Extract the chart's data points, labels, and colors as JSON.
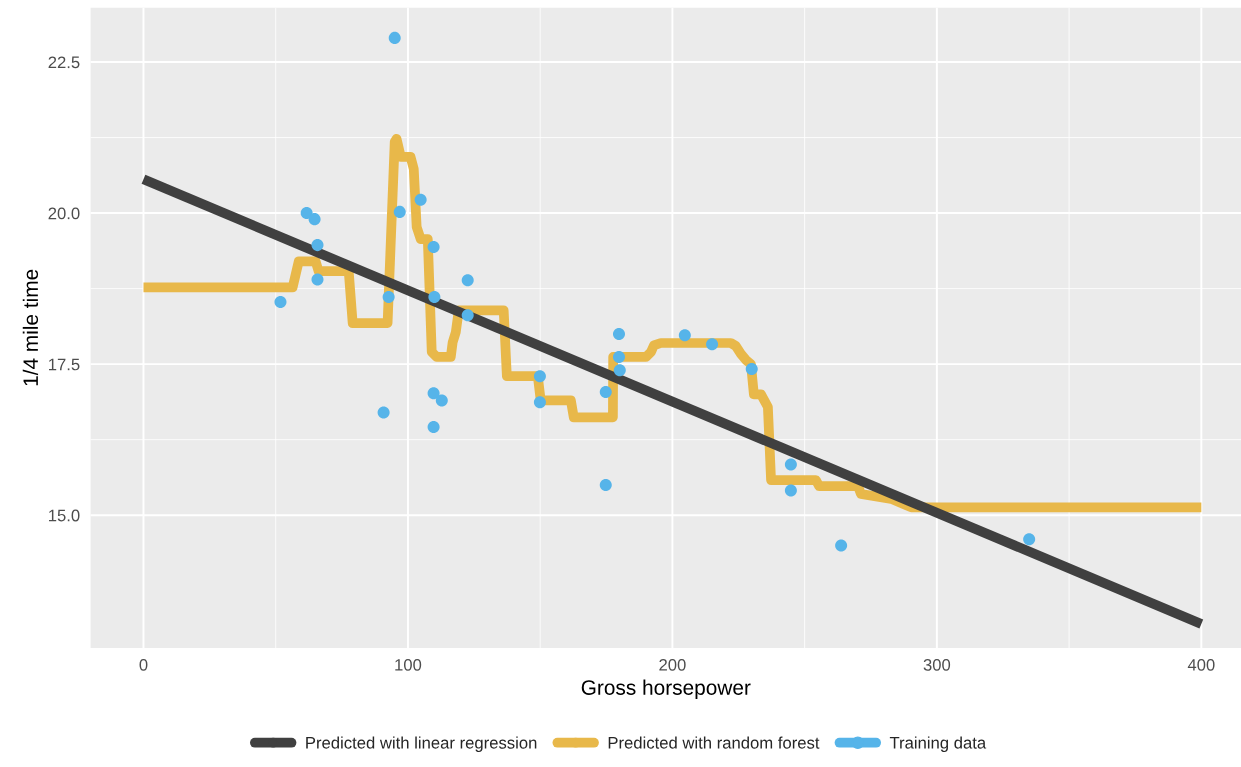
{
  "chart_data": {
    "type": "line",
    "xlabel": "Gross horsepower",
    "ylabel": "1/4 mile time",
    "xlim": [
      -20,
      415
    ],
    "ylim": [
      12.8,
      23.4
    ],
    "xticks": [
      0,
      100,
      200,
      300,
      400
    ],
    "yticks": [
      {
        "value": 15,
        "label": "15.0"
      },
      {
        "value": 17.5,
        "label": "17.5"
      },
      {
        "value": 20,
        "label": "20.0"
      },
      {
        "value": 22.5,
        "label": "22.5"
      }
    ],
    "grid": true,
    "legend": "bottom",
    "series": [
      {
        "name": "Predicted with linear regression",
        "color": "#404040",
        "x": [
          0,
          400
        ],
        "values": [
          20.56,
          13.2
        ]
      },
      {
        "name": "Predicted with random forest",
        "color": "#e8b84a",
        "x": [
          0,
          56.4,
          58.7,
          65.1,
          66.2,
          77.6,
          79.1,
          92.3,
          95.0,
          95.7,
          97.3,
          101.0,
          102.2,
          103.3,
          104.8,
          107.5,
          109.0,
          110.9,
          116.2,
          116.9,
          118.1,
          119.2,
          136.2,
          137.4,
          149.1,
          150.2,
          161.6,
          162.7,
          177.5,
          177.6,
          190.0,
          191.9,
          193.0,
          195.6,
          222.1,
          224.0,
          225.9,
          227.8,
          229.7,
          230.8,
          233.5,
          236.1,
          237.3,
          254.3,
          255.5,
          270.2,
          271.3,
          282.7,
          290.3,
          400
        ],
        "values": [
          18.77,
          18.77,
          19.2,
          19.2,
          19.04,
          19.04,
          18.18,
          18.18,
          21.18,
          21.23,
          20.93,
          20.93,
          20.73,
          19.77,
          19.57,
          19.57,
          17.7,
          17.62,
          17.62,
          17.86,
          18.03,
          18.39,
          18.39,
          17.3,
          17.3,
          16.9,
          16.9,
          16.62,
          16.62,
          17.62,
          17.62,
          17.7,
          17.81,
          17.85,
          17.85,
          17.8,
          17.67,
          17.57,
          17.5,
          17.0,
          17.0,
          16.79,
          15.58,
          15.58,
          15.48,
          15.48,
          15.35,
          15.27,
          15.13,
          15.13
        ]
      },
      {
        "name": "Training data",
        "type": "scatter",
        "color": "#56b4e9",
        "marker": "circle",
        "x": [
          51.8,
          61.7,
          64.7,
          65.8,
          65.8,
          90.8,
          92.7,
          95,
          96.9,
          104.8,
          109.7,
          109.7,
          109.7,
          110,
          112.8,
          122.6,
          122.6,
          149.9,
          149.9,
          174.8,
          174.8,
          179.8,
          179.8,
          180.1,
          204.7,
          215,
          230,
          244.8,
          244.8,
          263.8,
          334.9
        ],
        "values": [
          18.53,
          20.0,
          19.9,
          19.47,
          18.9,
          16.7,
          18.61,
          22.9,
          20.02,
          20.22,
          19.44,
          17.02,
          16.46,
          18.61,
          16.9,
          18.89,
          18.31,
          17.3,
          16.87,
          17.04,
          15.5,
          18.0,
          17.62,
          17.4,
          17.98,
          17.83,
          17.42,
          15.84,
          15.41,
          14.5,
          14.6
        ]
      }
    ]
  }
}
